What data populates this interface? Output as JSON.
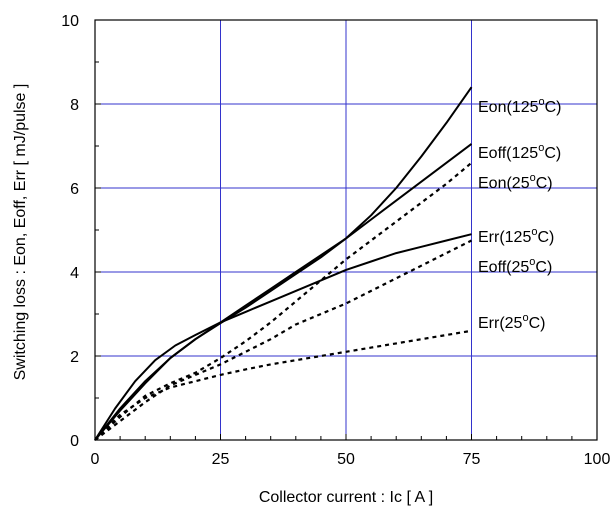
{
  "chart_data": {
    "type": "line",
    "title": "",
    "xlabel": "Collector current : Ic [ A ]",
    "ylabel": "Switching loss : Eon, Eoff, Err [ mJ/pulse ]",
    "xlim": [
      0,
      100
    ],
    "ylim": [
      0,
      10
    ],
    "xticks": [
      "0",
      "25",
      "50",
      "75",
      "100"
    ],
    "yticks": [
      "0",
      "2",
      "4",
      "6",
      "8",
      "10"
    ],
    "grid": true,
    "grid_color": "#3333cc",
    "line_color": "#000000",
    "series": [
      {
        "name": "Eon(125°C)",
        "label_base": "Eon(125",
        "label_sup": "o",
        "label_unit": "C)",
        "style": "solid",
        "x": [
          0,
          5,
          10,
          15,
          20,
          25,
          30,
          35,
          40,
          45,
          50,
          55,
          60,
          65,
          70,
          75
        ],
        "y": [
          0,
          0.7,
          1.35,
          1.95,
          2.4,
          2.78,
          3.15,
          3.55,
          3.95,
          4.35,
          4.8,
          5.35,
          6.0,
          6.75,
          7.55,
          8.4
        ]
      },
      {
        "name": "Eoff(125°C)",
        "label_base": "Eoff(125",
        "label_sup": "o",
        "label_unit": "C)",
        "style": "solid",
        "x": [
          0,
          5,
          10,
          15,
          20,
          25,
          30,
          35,
          40,
          45,
          50,
          55,
          60,
          65,
          70,
          75
        ],
        "y": [
          0,
          0.75,
          1.4,
          1.95,
          2.4,
          2.8,
          3.2,
          3.6,
          4.0,
          4.4,
          4.8,
          5.25,
          5.7,
          6.15,
          6.6,
          7.05
        ]
      },
      {
        "name": "Eon(25°C)",
        "label_base": "Eon(25",
        "label_sup": "o",
        "label_unit": "C)",
        "style": "dashed",
        "x": [
          0,
          5,
          10,
          15,
          20,
          25,
          30,
          35,
          40,
          45,
          50,
          55,
          60,
          65,
          70,
          75
        ],
        "y": [
          0,
          0.55,
          1.05,
          1.35,
          1.6,
          1.95,
          2.35,
          2.8,
          3.3,
          3.8,
          4.3,
          4.75,
          5.2,
          5.65,
          6.1,
          6.6
        ]
      },
      {
        "name": "Err(125°C)",
        "label_base": "Err(125",
        "label_sup": "o",
        "label_unit": "C)",
        "style": "solid",
        "x": [
          0,
          4,
          8,
          12,
          16,
          20,
          25,
          30,
          35,
          40,
          45,
          50,
          55,
          60,
          65,
          70,
          75
        ],
        "y": [
          0,
          0.75,
          1.4,
          1.9,
          2.25,
          2.5,
          2.8,
          3.05,
          3.3,
          3.55,
          3.8,
          4.05,
          4.25,
          4.45,
          4.6,
          4.75,
          4.9
        ]
      },
      {
        "name": "Eoff(25°C)",
        "label_base": "Eoff(25",
        "label_sup": "o",
        "label_unit": "C)",
        "style": "dashed",
        "x": [
          0,
          5,
          10,
          15,
          20,
          25,
          30,
          35,
          40,
          45,
          50,
          55,
          60,
          65,
          70,
          75
        ],
        "y": [
          0,
          0.45,
          0.9,
          1.3,
          1.55,
          1.8,
          2.1,
          2.4,
          2.75,
          3.0,
          3.25,
          3.55,
          3.85,
          4.15,
          4.45,
          4.75
        ]
      },
      {
        "name": "Err(25°C)",
        "label_base": "Err(25",
        "label_sup": "o",
        "label_unit": "C)",
        "style": "dashed",
        "x": [
          0,
          5,
          10,
          15,
          20,
          25,
          30,
          35,
          40,
          45,
          50,
          55,
          60,
          65,
          70,
          75
        ],
        "y": [
          0,
          0.6,
          1.0,
          1.25,
          1.4,
          1.55,
          1.68,
          1.8,
          1.9,
          2.0,
          2.1,
          2.2,
          2.3,
          2.4,
          2.5,
          2.6
        ]
      }
    ]
  }
}
